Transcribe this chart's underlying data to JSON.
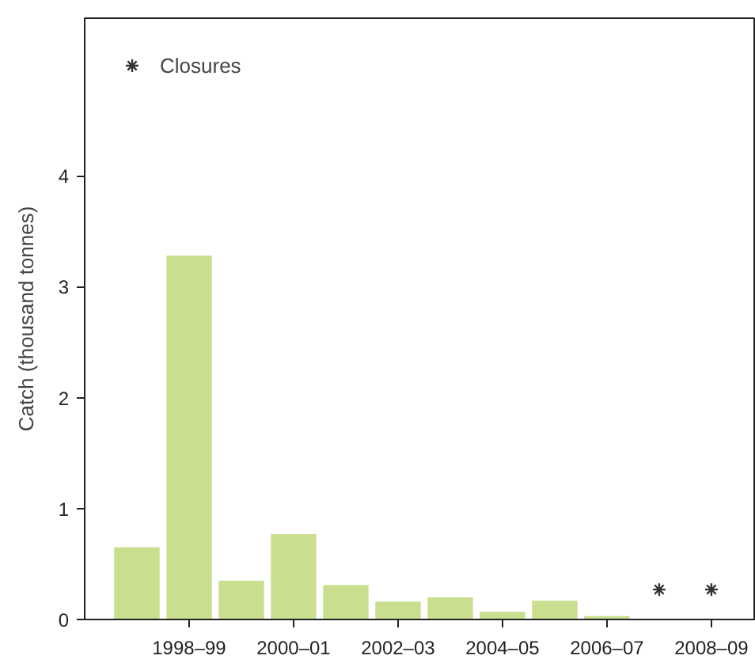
{
  "chart_data": {
    "type": "bar",
    "ylabel": "Catch (thousand tonnes)",
    "categories": [
      null,
      "1998–99",
      null,
      "2000–01",
      null,
      "2002–03",
      null,
      "2004–05",
      null,
      "2006–07",
      null,
      "2008–09"
    ],
    "series": [
      {
        "color": "#c9df8f",
        "values": [
          0.65,
          3.28,
          0.35,
          0.77,
          0.31,
          0.16,
          0.2,
          0.07,
          0.17,
          0.03,
          null,
          null
        ]
      },
      {
        "type": "scatter",
        "name": "Closures",
        "color": "#333333",
        "marker": "cross",
        "values": [
          null,
          null,
          null,
          null,
          null,
          null,
          null,
          null,
          null,
          null,
          0.27,
          0.27
        ]
      }
    ],
    "ylim": [
      0,
      5.42
    ],
    "yticks": [
      0,
      1,
      2,
      3,
      4
    ],
    "grid": false,
    "legend": "top left"
  }
}
